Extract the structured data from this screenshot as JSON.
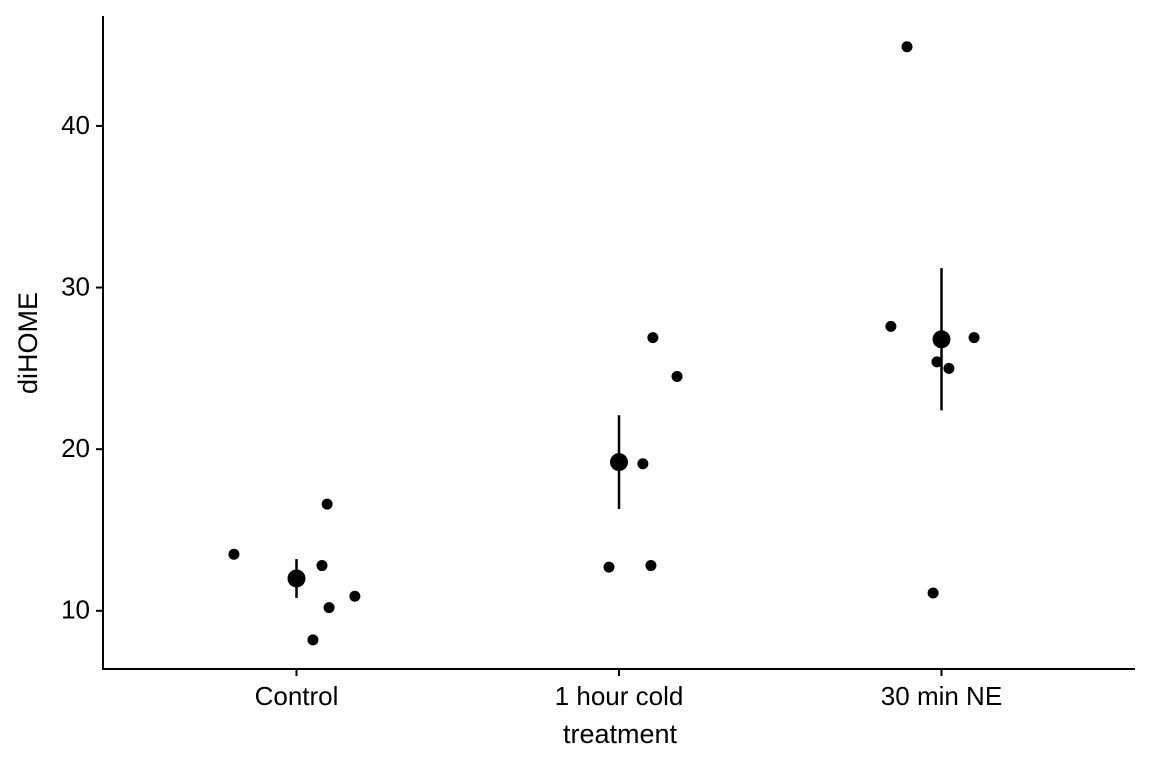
{
  "chart_data": {
    "type": "scatter",
    "x_label": "treatment",
    "y_label": "diHOME",
    "color": "#000000",
    "xlim": [
      0.4,
      3.6
    ],
    "xticks": [
      {
        "value": 1,
        "label": "Control"
      },
      {
        "value": 2,
        "label": "1 hour cold"
      },
      {
        "value": 3,
        "label": "30 min NE"
      }
    ],
    "ylim": [
      6.4,
      46.8
    ],
    "yticks": [
      10,
      20,
      30,
      40
    ],
    "grid": false,
    "points": {
      "x": [
        0.806,
        1.095,
        1.079,
        1.181,
        1.101,
        1.051,
        1.969,
        2.099,
        2.074,
        2.18,
        2.105,
        2.893,
        2.843,
        2.986,
        3.023,
        3.101,
        2.974
      ],
      "y": [
        13.5,
        16.6,
        12.8,
        10.9,
        10.2,
        8.2,
        12.7,
        12.8,
        19.1,
        24.5,
        26.9,
        44.9,
        27.6,
        25.4,
        25.0,
        26.9,
        11.1
      ]
    },
    "summary": {
      "x": [
        1,
        2,
        3
      ],
      "y": [
        12.0,
        19.2,
        26.8
      ],
      "error": [
        1.2,
        2.9,
        4.4
      ]
    }
  }
}
